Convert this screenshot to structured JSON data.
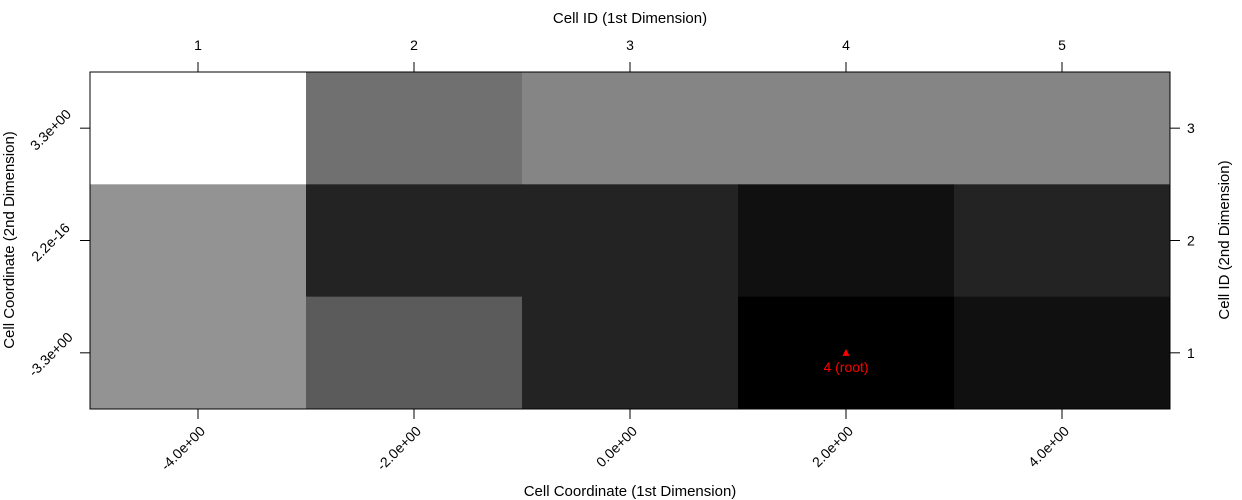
{
  "chart_data": {
    "type": "heatmap",
    "title": "",
    "xlabel_bottom": "Cell Coordinate (1st Dimension)",
    "xlabel_top": "Cell ID (1st Dimension)",
    "ylabel_left": "Cell Coordinate (2nd Dimension)",
    "ylabel_right": "Cell ID (2nd Dimension)",
    "x_coord_ticks": [
      "-4.0e+00",
      "-2.0e+00",
      "0.0e+00",
      "2.0e+00",
      "4.0e+00"
    ],
    "x_id_ticks": [
      "1",
      "2",
      "3",
      "4",
      "5"
    ],
    "y_coord_ticks": [
      "-3.3e+00",
      "2.2e-16",
      "3.3e+00"
    ],
    "y_id_ticks": [
      "1",
      "2",
      "3"
    ],
    "colormap": "grayscale",
    "rows": [
      {
        "y_id": 3,
        "gray_values": [
          "#ffffff",
          "#707070",
          "#858585",
          "#858585",
          "#858585"
        ]
      },
      {
        "y_id": 2,
        "gray_values": [
          "#939393",
          "#232323",
          "#232323",
          "#101010",
          "#232323"
        ]
      },
      {
        "y_id": 1,
        "gray_values": [
          "#939393",
          "#5b5b5b",
          "#232323",
          "#000000",
          "#101010"
        ]
      }
    ],
    "annotations": [
      {
        "x_id": 4,
        "y_id": 1,
        "marker": "triangle",
        "label": "4 (root)",
        "color": "#ff0000"
      }
    ]
  }
}
